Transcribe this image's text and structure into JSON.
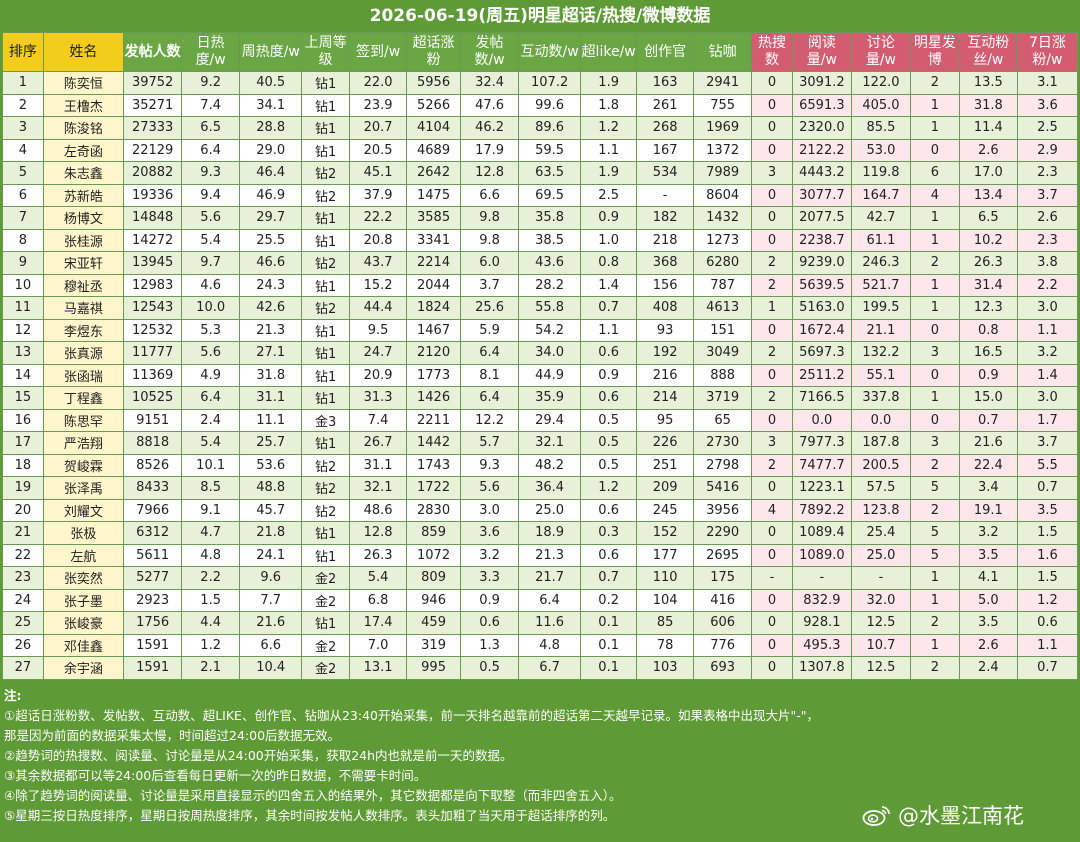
{
  "title": "2026-06-19(周五)明星超话/热搜/微博数据",
  "headers": [
    {
      "label": "排序",
      "style": "yel"
    },
    {
      "label": "姓名",
      "style": "yel"
    },
    {
      "label": "发帖人数",
      "style": "bold"
    },
    {
      "label": "日热度/w",
      "style": ""
    },
    {
      "label": "周热度/w",
      "style": ""
    },
    {
      "label": "上周等级",
      "style": ""
    },
    {
      "label": "签到/w",
      "style": ""
    },
    {
      "label": "超话涨粉",
      "style": ""
    },
    {
      "label": "发帖数/w",
      "style": ""
    },
    {
      "label": "互动数/w",
      "style": ""
    },
    {
      "label": "超like/w",
      "style": ""
    },
    {
      "label": "创作官",
      "style": ""
    },
    {
      "label": "钻咖",
      "style": ""
    },
    {
      "label": "热搜数",
      "style": "pinkh"
    },
    {
      "label": "阅读量/w",
      "style": "pinkh"
    },
    {
      "label": "讨论量/w",
      "style": "pinkh"
    },
    {
      "label": "明星发博",
      "style": "pinkh"
    },
    {
      "label": "互动粉丝/w",
      "style": "pinkh"
    },
    {
      "label": "7日涨粉/w",
      "style": "pinkh"
    }
  ],
  "rows": [
    [
      "1",
      "陈奕恒",
      "39752",
      "9.2",
      "40.5",
      "钻1",
      "22.0",
      "5956",
      "32.4",
      "107.2",
      "1.9",
      "163",
      "2941",
      "0",
      "3091.2",
      "122.0",
      "2",
      "13.5",
      "3.1"
    ],
    [
      "2",
      "王橹杰",
      "35271",
      "7.4",
      "34.1",
      "钻1",
      "23.9",
      "5266",
      "47.6",
      "99.6",
      "1.8",
      "261",
      "755",
      "0",
      "6591.3",
      "405.0",
      "1",
      "31.8",
      "3.6"
    ],
    [
      "3",
      "陈浚铭",
      "27333",
      "6.5",
      "28.8",
      "钻1",
      "20.7",
      "4104",
      "46.2",
      "89.6",
      "1.2",
      "268",
      "1969",
      "0",
      "2320.0",
      "85.5",
      "1",
      "11.4",
      "2.5"
    ],
    [
      "4",
      "左奇函",
      "22129",
      "6.4",
      "29.0",
      "钻1",
      "20.5",
      "4689",
      "17.9",
      "59.5",
      "1.1",
      "167",
      "1372",
      "0",
      "2122.2",
      "53.0",
      "0",
      "2.6",
      "2.9"
    ],
    [
      "5",
      "朱志鑫",
      "20882",
      "9.3",
      "46.4",
      "钻2",
      "45.1",
      "2642",
      "12.8",
      "63.5",
      "1.9",
      "534",
      "7989",
      "3",
      "4443.2",
      "119.8",
      "6",
      "17.0",
      "2.3"
    ],
    [
      "6",
      "苏新皓",
      "19336",
      "9.4",
      "46.9",
      "钻2",
      "37.9",
      "1475",
      "6.6",
      "69.5",
      "2.5",
      "-",
      "8604",
      "0",
      "3077.7",
      "164.7",
      "4",
      "13.4",
      "3.7"
    ],
    [
      "7",
      "杨博文",
      "14848",
      "5.6",
      "29.7",
      "钻1",
      "22.2",
      "3585",
      "9.8",
      "35.8",
      "0.9",
      "182",
      "1432",
      "0",
      "2077.5",
      "42.7",
      "1",
      "6.5",
      "2.6"
    ],
    [
      "8",
      "张桂源",
      "14272",
      "5.4",
      "25.5",
      "钻1",
      "20.8",
      "3341",
      "9.8",
      "38.5",
      "1.0",
      "218",
      "1273",
      "0",
      "2238.7",
      "61.1",
      "1",
      "10.2",
      "2.3"
    ],
    [
      "9",
      "宋亚轩",
      "13945",
      "9.7",
      "46.6",
      "钻2",
      "43.7",
      "2214",
      "6.0",
      "43.6",
      "0.8",
      "368",
      "6280",
      "2",
      "9239.0",
      "246.3",
      "2",
      "26.3",
      "3.8"
    ],
    [
      "10",
      "穆祉丞",
      "12983",
      "4.6",
      "24.3",
      "钻1",
      "15.2",
      "2044",
      "3.7",
      "28.2",
      "1.4",
      "156",
      "787",
      "2",
      "5639.5",
      "521.7",
      "1",
      "31.4",
      "2.2"
    ],
    [
      "11",
      "马嘉祺",
      "12543",
      "10.0",
      "42.6",
      "钻2",
      "44.4",
      "1824",
      "25.6",
      "55.8",
      "0.7",
      "408",
      "4613",
      "1",
      "5163.0",
      "199.5",
      "1",
      "12.3",
      "3.0"
    ],
    [
      "12",
      "李煜东",
      "12532",
      "5.3",
      "21.3",
      "钻1",
      "9.5",
      "1467",
      "5.9",
      "54.2",
      "1.1",
      "93",
      "151",
      "0",
      "1672.4",
      "21.1",
      "0",
      "0.8",
      "1.1"
    ],
    [
      "13",
      "张真源",
      "11777",
      "5.6",
      "27.1",
      "钻1",
      "24.7",
      "2120",
      "6.4",
      "34.0",
      "0.6",
      "192",
      "3049",
      "2",
      "5697.3",
      "132.2",
      "3",
      "16.5",
      "3.2"
    ],
    [
      "14",
      "张函瑞",
      "11369",
      "4.9",
      "31.8",
      "钻1",
      "20.9",
      "1773",
      "8.1",
      "44.9",
      "0.9",
      "216",
      "888",
      "0",
      "2511.2",
      "55.1",
      "0",
      "0.9",
      "1.4"
    ],
    [
      "15",
      "丁程鑫",
      "10525",
      "6.4",
      "31.1",
      "钻1",
      "31.3",
      "1426",
      "6.4",
      "35.9",
      "0.6",
      "214",
      "3719",
      "2",
      "7166.5",
      "337.8",
      "1",
      "15.0",
      "3.0"
    ],
    [
      "16",
      "陈思罕",
      "9151",
      "2.4",
      "11.1",
      "金3",
      "7.4",
      "2211",
      "12.2",
      "29.4",
      "0.5",
      "95",
      "65",
      "0",
      "0.0",
      "0.0",
      "0",
      "0.7",
      "1.7"
    ],
    [
      "17",
      "严浩翔",
      "8818",
      "5.4",
      "25.7",
      "钻1",
      "26.7",
      "1442",
      "5.7",
      "32.1",
      "0.5",
      "226",
      "2730",
      "3",
      "7977.3",
      "187.8",
      "3",
      "21.6",
      "3.7"
    ],
    [
      "18",
      "贺峻霖",
      "8526",
      "10.1",
      "53.6",
      "钻2",
      "31.1",
      "1743",
      "9.3",
      "48.2",
      "0.5",
      "251",
      "2798",
      "2",
      "7477.7",
      "200.5",
      "2",
      "22.4",
      "5.5"
    ],
    [
      "19",
      "张泽禹",
      "8433",
      "8.5",
      "48.8",
      "钻2",
      "32.1",
      "1722",
      "5.6",
      "36.4",
      "1.2",
      "209",
      "5416",
      "0",
      "1223.1",
      "57.5",
      "5",
      "3.4",
      "0.7"
    ],
    [
      "20",
      "刘耀文",
      "7966",
      "9.1",
      "45.7",
      "钻2",
      "48.6",
      "2830",
      "3.0",
      "25.0",
      "0.6",
      "245",
      "3956",
      "4",
      "7892.2",
      "123.8",
      "2",
      "19.1",
      "3.5"
    ],
    [
      "21",
      "张极",
      "6312",
      "4.7",
      "21.8",
      "钻1",
      "12.8",
      "859",
      "3.6",
      "18.9",
      "0.3",
      "152",
      "2290",
      "0",
      "1089.4",
      "25.4",
      "5",
      "3.2",
      "1.5"
    ],
    [
      "22",
      "左航",
      "5611",
      "4.8",
      "24.1",
      "钻1",
      "26.3",
      "1072",
      "3.2",
      "21.3",
      "0.6",
      "177",
      "2695",
      "0",
      "1089.0",
      "25.0",
      "5",
      "3.5",
      "1.6"
    ],
    [
      "23",
      "张奕然",
      "5277",
      "2.2",
      "9.6",
      "金2",
      "5.4",
      "809",
      "3.3",
      "21.7",
      "0.7",
      "110",
      "175",
      "-",
      "-",
      "-",
      "1",
      "4.1",
      "1.5"
    ],
    [
      "24",
      "张子墨",
      "2923",
      "1.5",
      "7.7",
      "金2",
      "6.8",
      "946",
      "0.9",
      "6.4",
      "0.2",
      "104",
      "416",
      "0",
      "832.9",
      "32.0",
      "1",
      "5.0",
      "1.2"
    ],
    [
      "25",
      "张峻豪",
      "1756",
      "4.4",
      "21.6",
      "钻1",
      "17.4",
      "459",
      "0.6",
      "11.6",
      "0.1",
      "85",
      "606",
      "0",
      "928.1",
      "12.5",
      "2",
      "3.5",
      "0.6"
    ],
    [
      "26",
      "邓佳鑫",
      "1591",
      "1.2",
      "6.6",
      "金2",
      "7.0",
      "319",
      "1.3",
      "4.8",
      "0.1",
      "78",
      "776",
      "0",
      "495.3",
      "10.7",
      "1",
      "2.6",
      "1.1"
    ],
    [
      "27",
      "余宇涵",
      "1591",
      "2.1",
      "10.4",
      "金2",
      "13.1",
      "995",
      "0.5",
      "6.7",
      "0.1",
      "103",
      "693",
      "0",
      "1307.8",
      "12.5",
      "2",
      "2.4",
      "0.7"
    ]
  ],
  "red_cells": {
    "1": [
      2,
      6
    ],
    "2": [
      2,
      6
    ],
    "3": [
      2,
      6,
      15
    ],
    "4": [
      2,
      6
    ],
    "5": [
      2,
      6
    ],
    "6": [
      6
    ],
    "7": [
      2,
      6
    ],
    "8": [
      2,
      6
    ],
    "9": [
      2,
      6,
      14
    ],
    "10": [
      6,
      15
    ],
    "11": [
      2,
      3,
      6,
      14
    ],
    "12": [
      2,
      3
    ],
    "13": [
      2,
      6,
      14
    ],
    "14": [
      2,
      6
    ],
    "15": [
      2,
      6
    ],
    "16": [
      2,
      6
    ],
    "17": [
      2,
      6,
      14
    ],
    "18": [
      2,
      6,
      18
    ],
    "20": [
      2,
      14
    ],
    "21": [
      2
    ],
    "23": [
      3
    ],
    "24": [
      2,
      15
    ],
    "25": [
      2,
      14,
      15
    ],
    "27": [
      2,
      6
    ]
  },
  "blue_cells": {
    "6": [
      6
    ],
    "14": [
      3
    ]
  },
  "notes": [
    "注:",
    "①超话日涨粉数、发帖数、互动数、超LIKE、创作官、钻咖从23:40开始采集，前一天排名越靠前的超话第二天越早记录。如果表格中出现大片\"-\"，",
    "那是因为前面的数据采集太慢，时间超过24:00后数据无效。",
    "②趋势词的热搜数、阅读量、讨论量是从24:00开始采集，获取24h内也就是前一天的数据。",
    "③其余数据都可以等24:00后查看每日更新一次的昨日数据，不需要卡时间。",
    "④除了趋势词的阅读量、讨论量是采用直接显示的四舍五入的结果外，其它数据都是向下取整（而非四舍五入）。",
    "⑤星期三按日热度排序，星期日按周热度排序，其余时间按发帖人数排序。表头加粗了当天用于超话排序的列。"
  ],
  "watermark": "@水墨江南花",
  "icons": {
    "watermark": "weibo-icon"
  }
}
